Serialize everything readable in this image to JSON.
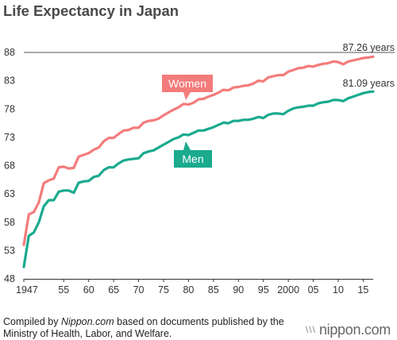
{
  "chart_data": {
    "type": "line",
    "title": "Life Expectancy in Japan",
    "ylim": [
      48,
      88
    ],
    "y_ticks": [
      48,
      53,
      58,
      63,
      68,
      73,
      78,
      83,
      88
    ],
    "xlim": [
      1947,
      2017
    ],
    "x_ticks": [
      {
        "value": 1947,
        "label": "1947"
      },
      {
        "value": 1955,
        "label": "55"
      },
      {
        "value": 1960,
        "label": "60"
      },
      {
        "value": 1965,
        "label": "65"
      },
      {
        "value": 1970,
        "label": "70"
      },
      {
        "value": 1975,
        "label": "75"
      },
      {
        "value": 1980,
        "label": "80"
      },
      {
        "value": 1985,
        "label": "85"
      },
      {
        "value": 1990,
        "label": "90"
      },
      {
        "value": 1995,
        "label": "95"
      },
      {
        "value": 2000,
        "label": "2000"
      },
      {
        "value": 2005,
        "label": "05"
      },
      {
        "value": 2010,
        "label": "10"
      },
      {
        "value": 2015,
        "label": "15"
      }
    ],
    "grid": false,
    "series": [
      {
        "name": "Women",
        "color": "#f47b7b",
        "end_label": "87.26 years",
        "points": [
          [
            1947,
            54.0
          ],
          [
            1948,
            59.4
          ],
          [
            1949,
            59.8
          ],
          [
            1950,
            61.5
          ],
          [
            1951,
            64.9
          ],
          [
            1952,
            65.4
          ],
          [
            1953,
            65.7
          ],
          [
            1954,
            67.7
          ],
          [
            1955,
            67.8
          ],
          [
            1956,
            67.5
          ],
          [
            1957,
            67.6
          ],
          [
            1958,
            69.6
          ],
          [
            1959,
            69.9
          ],
          [
            1960,
            70.2
          ],
          [
            1961,
            70.8
          ],
          [
            1962,
            71.2
          ],
          [
            1963,
            72.3
          ],
          [
            1964,
            72.9
          ],
          [
            1965,
            72.9
          ],
          [
            1966,
            73.6
          ],
          [
            1967,
            74.2
          ],
          [
            1968,
            74.3
          ],
          [
            1969,
            74.7
          ],
          [
            1970,
            74.7
          ],
          [
            1971,
            75.6
          ],
          [
            1972,
            75.9
          ],
          [
            1973,
            76.0
          ],
          [
            1974,
            76.3
          ],
          [
            1975,
            76.9
          ],
          [
            1976,
            77.4
          ],
          [
            1977,
            77.9
          ],
          [
            1978,
            78.3
          ],
          [
            1979,
            78.9
          ],
          [
            1980,
            78.8
          ],
          [
            1981,
            79.1
          ],
          [
            1982,
            79.7
          ],
          [
            1983,
            79.8
          ],
          [
            1984,
            80.2
          ],
          [
            1985,
            80.5
          ],
          [
            1986,
            80.9
          ],
          [
            1987,
            81.4
          ],
          [
            1988,
            81.3
          ],
          [
            1989,
            81.8
          ],
          [
            1990,
            81.9
          ],
          [
            1991,
            82.1
          ],
          [
            1992,
            82.2
          ],
          [
            1993,
            82.5
          ],
          [
            1994,
            83.0
          ],
          [
            1995,
            82.9
          ],
          [
            1996,
            83.6
          ],
          [
            1997,
            83.8
          ],
          [
            1998,
            84.0
          ],
          [
            1999,
            84.0
          ],
          [
            2000,
            84.6
          ],
          [
            2001,
            84.9
          ],
          [
            2002,
            85.2
          ],
          [
            2003,
            85.3
          ],
          [
            2004,
            85.6
          ],
          [
            2005,
            85.5
          ],
          [
            2006,
            85.8
          ],
          [
            2007,
            86.0
          ],
          [
            2008,
            86.1
          ],
          [
            2009,
            86.4
          ],
          [
            2010,
            86.3
          ],
          [
            2011,
            85.9
          ],
          [
            2012,
            86.4
          ],
          [
            2013,
            86.6
          ],
          [
            2014,
            86.8
          ],
          [
            2015,
            87.0
          ],
          [
            2016,
            87.1
          ],
          [
            2017,
            87.26
          ]
        ]
      },
      {
        "name": "Men",
        "color": "#1aaa8e",
        "end_label": "81.09 years",
        "points": [
          [
            1947,
            50.1
          ],
          [
            1948,
            55.6
          ],
          [
            1949,
            56.2
          ],
          [
            1950,
            58.0
          ],
          [
            1951,
            60.8
          ],
          [
            1952,
            61.9
          ],
          [
            1953,
            61.9
          ],
          [
            1954,
            63.4
          ],
          [
            1955,
            63.6
          ],
          [
            1956,
            63.6
          ],
          [
            1957,
            63.2
          ],
          [
            1958,
            65.0
          ],
          [
            1959,
            65.2
          ],
          [
            1960,
            65.3
          ],
          [
            1961,
            66.0
          ],
          [
            1962,
            66.2
          ],
          [
            1963,
            67.2
          ],
          [
            1964,
            67.7
          ],
          [
            1965,
            67.7
          ],
          [
            1966,
            68.4
          ],
          [
            1967,
            68.9
          ],
          [
            1968,
            69.1
          ],
          [
            1969,
            69.2
          ],
          [
            1970,
            69.3
          ],
          [
            1971,
            70.2
          ],
          [
            1972,
            70.5
          ],
          [
            1973,
            70.7
          ],
          [
            1974,
            71.2
          ],
          [
            1975,
            71.7
          ],
          [
            1976,
            72.2
          ],
          [
            1977,
            72.7
          ],
          [
            1978,
            73.0
          ],
          [
            1979,
            73.5
          ],
          [
            1980,
            73.4
          ],
          [
            1981,
            73.8
          ],
          [
            1982,
            74.2
          ],
          [
            1983,
            74.2
          ],
          [
            1984,
            74.5
          ],
          [
            1985,
            74.8
          ],
          [
            1986,
            75.2
          ],
          [
            1987,
            75.6
          ],
          [
            1988,
            75.5
          ],
          [
            1989,
            75.9
          ],
          [
            1990,
            75.9
          ],
          [
            1991,
            76.1
          ],
          [
            1992,
            76.1
          ],
          [
            1993,
            76.3
          ],
          [
            1994,
            76.6
          ],
          [
            1995,
            76.4
          ],
          [
            1996,
            77.0
          ],
          [
            1997,
            77.2
          ],
          [
            1998,
            77.2
          ],
          [
            1999,
            77.1
          ],
          [
            2000,
            77.7
          ],
          [
            2001,
            78.1
          ],
          [
            2002,
            78.3
          ],
          [
            2003,
            78.4
          ],
          [
            2004,
            78.6
          ],
          [
            2005,
            78.6
          ],
          [
            2006,
            79.0
          ],
          [
            2007,
            79.2
          ],
          [
            2008,
            79.3
          ],
          [
            2009,
            79.6
          ],
          [
            2010,
            79.6
          ],
          [
            2011,
            79.4
          ],
          [
            2012,
            79.9
          ],
          [
            2013,
            80.2
          ],
          [
            2014,
            80.5
          ],
          [
            2015,
            80.8
          ],
          [
            2016,
            81.0
          ],
          [
            2017,
            81.09
          ]
        ]
      }
    ]
  },
  "footer": {
    "source_prefix": "Compiled by ",
    "source_site": "Nippon.com",
    "source_suffix": " based on documents published by the Ministry of Health, Labor, and Welfare.",
    "brand": "nippon.com",
    "brand_mark": "\\\\\\"
  }
}
